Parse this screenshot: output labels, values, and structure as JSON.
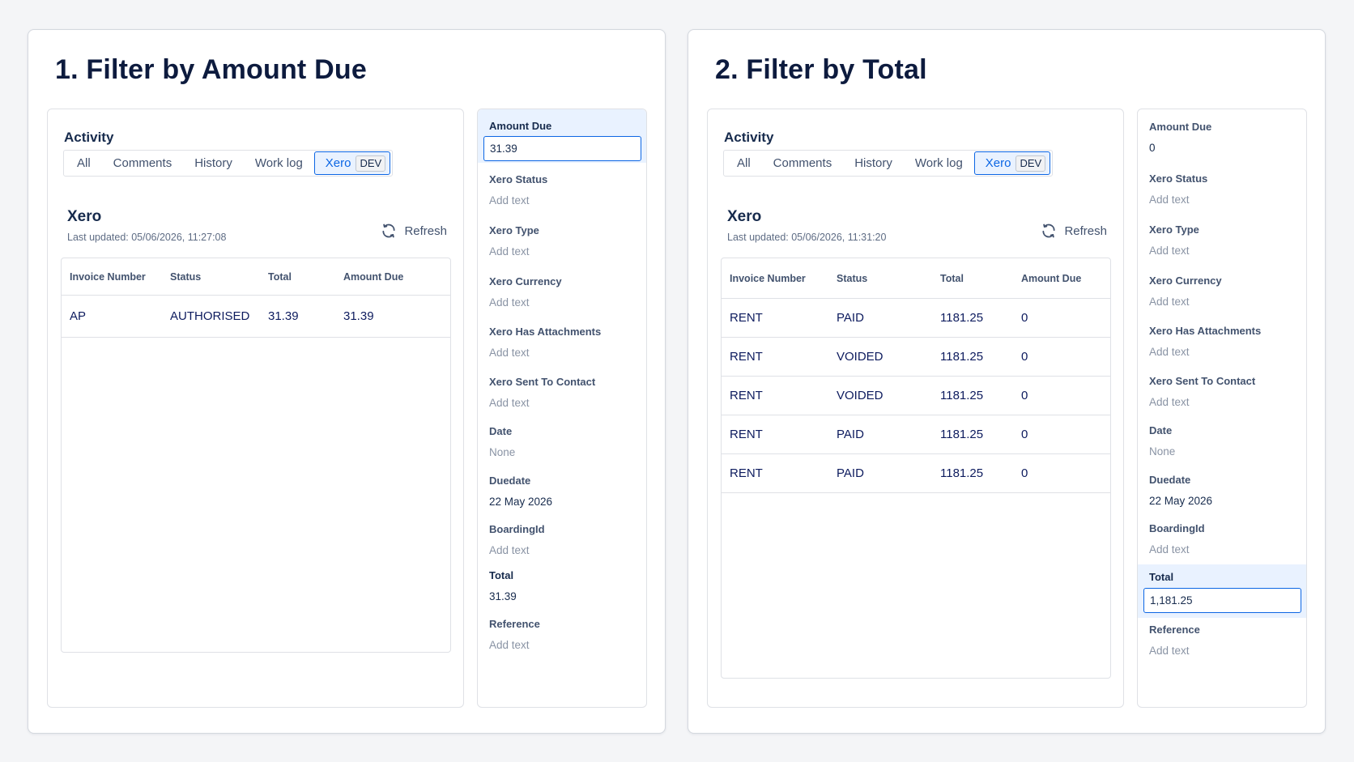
{
  "tabs": [
    "All",
    "Comments",
    "History",
    "Work log"
  ],
  "xero_tab": {
    "label": "Xero",
    "badge": "DEV"
  },
  "columns": [
    "Invoice Number",
    "Status",
    "Total",
    "Amount Due"
  ],
  "refresh_label": "Refresh",
  "activity_label": "Activity",
  "xero_heading": "Xero",
  "filters": [
    {
      "title": "1. Filter by Amount Due",
      "last_updated": "Last updated: 05/06/2026, 11:27:08",
      "rows": [
        {
          "invoice": "AP",
          "status": "AUTHORISED",
          "total": "31.39",
          "amount_due": "31.39"
        }
      ],
      "fields": [
        {
          "label": "Amount Due",
          "value": "31.39",
          "editing": true
        },
        {
          "label": "Xero Status",
          "value": "Add text"
        },
        {
          "label": "Xero Type",
          "value": "Add text"
        },
        {
          "label": "Xero Currency",
          "value": "Add text"
        },
        {
          "label": "Xero Has Attachments",
          "value": "Add text"
        },
        {
          "label": "Xero Sent To Contact",
          "value": "Add text"
        },
        {
          "label": "Date",
          "value": "None"
        },
        {
          "label": "Duedate",
          "value": "22 May 2026",
          "set": true
        },
        {
          "label": "BoardingId",
          "value": "Add text"
        },
        {
          "label": "Total",
          "value": "31.39",
          "set": true,
          "bold": true
        },
        {
          "label": "Reference",
          "value": "Add text"
        }
      ]
    },
    {
      "title": "2. Filter by Total",
      "last_updated": "Last updated: 05/06/2026, 11:31:20",
      "rows": [
        {
          "invoice": "RENT",
          "status": "PAID",
          "total": "1181.25",
          "amount_due": "0"
        },
        {
          "invoice": "RENT",
          "status": "VOIDED",
          "total": "1181.25",
          "amount_due": "0"
        },
        {
          "invoice": "RENT",
          "status": "VOIDED",
          "total": "1181.25",
          "amount_due": "0"
        },
        {
          "invoice": "RENT",
          "status": "PAID",
          "total": "1181.25",
          "amount_due": "0"
        },
        {
          "invoice": "RENT",
          "status": "PAID",
          "total": "1181.25",
          "amount_due": "0"
        }
      ],
      "fields": [
        {
          "label": "Amount Due",
          "value": "0",
          "set": true
        },
        {
          "label": "Xero Status",
          "value": "Add text"
        },
        {
          "label": "Xero Type",
          "value": "Add text"
        },
        {
          "label": "Xero Currency",
          "value": "Add text"
        },
        {
          "label": "Xero Has Attachments",
          "value": "Add text"
        },
        {
          "label": "Xero Sent To Contact",
          "value": "Add text"
        },
        {
          "label": "Date",
          "value": "None"
        },
        {
          "label": "Duedate",
          "value": "22 May 2026",
          "set": true
        },
        {
          "label": "BoardingId",
          "value": "Add text"
        },
        {
          "label": "Total",
          "value": "1,181.25",
          "editing": true
        },
        {
          "label": "Reference",
          "value": "Add text"
        }
      ]
    }
  ]
}
